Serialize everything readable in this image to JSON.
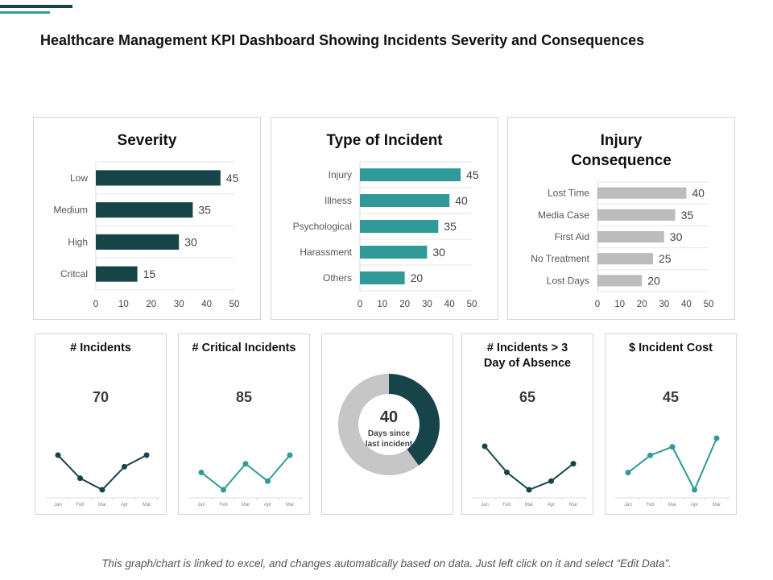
{
  "page": {
    "title": "Healthcare Management KPI Dashboard Showing Incidents Severity and Consequences",
    "footer": "This graph/chart is linked to excel, and changes automatically based on data.  Just left click on it and select “Edit Data”.",
    "colors": {
      "dark": "#174448",
      "teal": "#2f9a97",
      "gray": "#bcbcbc",
      "grid": "#e3e3e3"
    }
  },
  "chart_data": [
    {
      "id": "severity",
      "type": "bar",
      "orientation": "horizontal",
      "title": "Severity",
      "categories": [
        "Low",
        "Medium",
        "High",
        "Critcal"
      ],
      "values": [
        45,
        35,
        30,
        15
      ],
      "xlim": [
        0,
        50
      ],
      "ticks": [
        "0",
        "10",
        "20",
        "30",
        "40",
        "50"
      ],
      "color": "#174448"
    },
    {
      "id": "type",
      "type": "bar",
      "orientation": "horizontal",
      "title": "Type of Incident",
      "categories": [
        "Injury",
        "Illness",
        "Psychological",
        "Harassment",
        "Others"
      ],
      "values": [
        45,
        40,
        35,
        30,
        20
      ],
      "xlim": [
        0,
        50
      ],
      "ticks": [
        "0",
        "10",
        "20",
        "30",
        "40",
        "50"
      ],
      "color": "#2f9a97"
    },
    {
      "id": "injury",
      "type": "bar",
      "orientation": "horizontal",
      "title": "Injury Consequence",
      "title_lines": [
        "Injury",
        "Consequence"
      ],
      "categories": [
        "Lost Time",
        "Media Case",
        "First Aid",
        "No Treatment",
        "Lost Days"
      ],
      "values": [
        40,
        35,
        30,
        25,
        20
      ],
      "xlim": [
        0,
        50
      ],
      "ticks": [
        "0",
        "10",
        "20",
        "30",
        "40",
        "50"
      ],
      "color": "#bcbcbc"
    },
    {
      "id": "incidents",
      "type": "line",
      "title": "# Incidents",
      "kpi": "70",
      "color": "#174448",
      "categories": [
        "Jan",
        "Feb",
        "Mar",
        "Apr",
        "Mar"
      ],
      "values": [
        3,
        1,
        0,
        2,
        3
      ]
    },
    {
      "id": "critical",
      "type": "line",
      "title": "# Critical Incidents",
      "kpi": "85",
      "color": "#2f9a97",
      "categories": [
        "Jan",
        "Feb",
        "Mar",
        "Apr",
        "Mar"
      ],
      "values": [
        2,
        0,
        3,
        1,
        4
      ]
    },
    {
      "id": "donut",
      "type": "pie",
      "variant": "donut",
      "center_value": "40",
      "center_label": "Days since last incident",
      "center_label_lines": [
        "Days since",
        "last incident"
      ],
      "values": [
        40,
        60
      ],
      "colors": [
        "#174448",
        "#c6c6c6"
      ]
    },
    {
      "id": "absence",
      "type": "line",
      "title": "# Incidents > 3 Day of Absence",
      "title_lines": [
        "# Incidents > 3",
        "Day of Absence"
      ],
      "kpi": "65",
      "color": "#174448",
      "categories": [
        "Jan",
        "Feb",
        "Mar",
        "Apr",
        "Mar"
      ],
      "values": [
        5,
        2,
        0,
        1,
        3
      ]
    },
    {
      "id": "cost",
      "type": "line",
      "title": "$ Incident Cost",
      "kpi": "45",
      "color": "#2f9a97",
      "categories": [
        "Jan",
        "Feb",
        "Mar",
        "Apr",
        "Mar"
      ],
      "values": [
        2,
        4,
        5,
        0,
        6
      ]
    }
  ]
}
